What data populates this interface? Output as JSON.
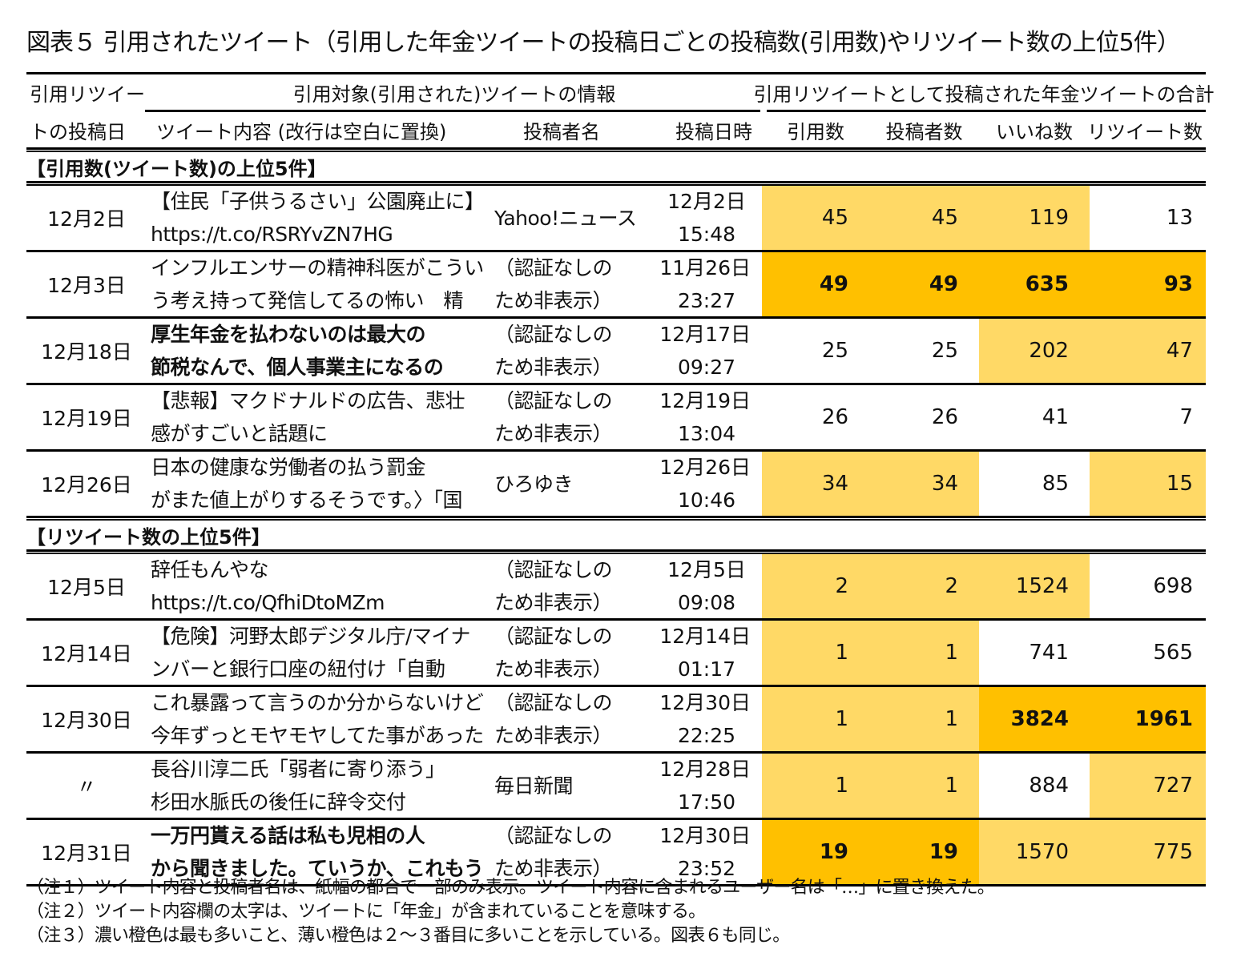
{
  "title": "図表５ 引用されたツイート（引用した年金ツイートの投稿日ごとの投稿数(引用数)やリツイート数の上位5件）",
  "header": {
    "col_date_line1": "引用リツイー",
    "col_date_line2": "トの投稿日",
    "group_target": "引用対象(引用された)ツイートの情報",
    "group_totals": "引用リツイートとして投稿された年金ツイートの合計",
    "col_content": "ツイート内容 (改行は空白に置換)",
    "col_author": "投稿者名",
    "col_datetime": "投稿日時",
    "col_quotes": "引用数",
    "col_posters": "投稿者数",
    "col_likes": "いいね数",
    "col_retweets": "リツイート数"
  },
  "colors": {
    "light_orange": "#FFD966",
    "dark_orange": "#FFC000"
  },
  "sections": [
    {
      "label": "【引用数(ツイート数)の上位5件】",
      "rows": [
        {
          "date": "12月2日",
          "content": [
            "【住民「子供うるさい」公園廃止に】",
            "https://t.co/RSRYvZN7HG"
          ],
          "content_bold": false,
          "author": [
            "Yahoo!ニュース"
          ],
          "datetime": [
            "12月2日",
            "15:48"
          ],
          "quotes": "45",
          "posters": "45",
          "likes": "119",
          "retweets": "13",
          "hl": [
            "light",
            "light",
            "light",
            ""
          ]
        },
        {
          "date": "12月3日",
          "content": [
            "インフルエンサーの精神科医がこうい",
            "う考え持って発信してるの怖い　精"
          ],
          "content_bold": false,
          "author": [
            "（認証なしの",
            "ため非表示）"
          ],
          "datetime": [
            "11月26日",
            "23:27"
          ],
          "quotes": "49",
          "posters": "49",
          "likes": "635",
          "retweets": "93",
          "hl": [
            "dark",
            "dark",
            "dark",
            "dark"
          ]
        },
        {
          "date": "12月18日",
          "content": [
            "厚生年金を払わないのは最大の",
            "節税なんで、個人事業主になるの"
          ],
          "content_bold": true,
          "author": [
            "（認証なしの",
            "ため非表示）"
          ],
          "datetime": [
            "12月17日",
            "09:27"
          ],
          "quotes": "25",
          "posters": "25",
          "likes": "202",
          "retweets": "47",
          "hl": [
            "",
            "",
            "light",
            "light"
          ]
        },
        {
          "date": "12月19日",
          "content": [
            "【悲報】マクドナルドの広告、悲壮",
            "感がすごいと話題に"
          ],
          "content_bold": false,
          "author": [
            "（認証なしの",
            "ため非表示）"
          ],
          "datetime": [
            "12月19日",
            "13:04"
          ],
          "quotes": "26",
          "posters": "26",
          "likes": "41",
          "retweets": "7",
          "hl": [
            "",
            "",
            "",
            ""
          ]
        },
        {
          "date": "12月26日",
          "content": [
            "日本の健康な労働者の払う罰金",
            "がまた値上がりするそうです。〉「国"
          ],
          "content_bold": false,
          "author": [
            "ひろゆき"
          ],
          "datetime": [
            "12月26日",
            "10:46"
          ],
          "quotes": "34",
          "posters": "34",
          "likes": "85",
          "retweets": "15",
          "hl": [
            "light",
            "light",
            "",
            "light"
          ]
        }
      ]
    },
    {
      "label": "【リツイート数の上位5件】",
      "rows": [
        {
          "date": "12月5日",
          "content": [
            "辞任もんやな",
            "https://t.co/QfhiDtoMZm"
          ],
          "content_bold": false,
          "author": [
            "（認証なしの",
            "ため非表示）"
          ],
          "datetime": [
            "12月5日",
            "09:08"
          ],
          "quotes": "2",
          "posters": "2",
          "likes": "1524",
          "retweets": "698",
          "hl": [
            "light",
            "light",
            "light",
            ""
          ]
        },
        {
          "date": "12月14日",
          "content": [
            "【危険】河野太郎デジタル庁/マイナ",
            "ンバーと銀行口座の紐付け「自動"
          ],
          "content_bold": false,
          "author": [
            "（認証なしの",
            "ため非表示）"
          ],
          "datetime": [
            "12月14日",
            "01:17"
          ],
          "quotes": "1",
          "posters": "1",
          "likes": "741",
          "retweets": "565",
          "hl": [
            "light",
            "light",
            "",
            ""
          ]
        },
        {
          "date": "12月30日",
          "content": [
            "これ暴露って言うのか分からないけど",
            "今年ずっとモヤモヤしてた事があった"
          ],
          "content_bold": false,
          "author": [
            "（認証なしの",
            "ため非表示）"
          ],
          "datetime": [
            "12月30日",
            "22:25"
          ],
          "quotes": "1",
          "posters": "1",
          "likes": "3824",
          "retweets": "1961",
          "hl": [
            "light",
            "light",
            "dark",
            "dark"
          ]
        },
        {
          "date": "〃",
          "content": [
            "長谷川淳二氏「弱者に寄り添う」",
            "杉田水脈氏の後任に辞令交付"
          ],
          "content_bold": false,
          "author": [
            "毎日新聞"
          ],
          "datetime": [
            "12月28日",
            "17:50"
          ],
          "quotes": "1",
          "posters": "1",
          "likes": "884",
          "retweets": "727",
          "hl": [
            "light",
            "light",
            "",
            "light"
          ]
        },
        {
          "date": "12月31日",
          "content": [
            "一万円貰える話は私も児相の人",
            "から聞きました。ていうか、これもう"
          ],
          "content_bold": true,
          "author": [
            "（認証なしの",
            "ため非表示）"
          ],
          "datetime": [
            "12月30日",
            "23:52"
          ],
          "quotes": "19",
          "posters": "19",
          "likes": "1570",
          "retweets": "775",
          "hl": [
            "dark",
            "dark",
            "light",
            "light"
          ]
        }
      ]
    }
  ],
  "notes": [
    "（注１）ツイート内容と投稿者名は、紙幅の都合で一部のみ表示。ツイート内容に含まれるユーザー名は「…」に置き換えた。",
    "（注２）ツイート内容欄の太字は、ツイートに「年金」が含まれていることを意味する。",
    "（注３）濃い橙色は最も多いこと、薄い橙色は２～３番目に多いことを示している。図表６も同じ。"
  ]
}
